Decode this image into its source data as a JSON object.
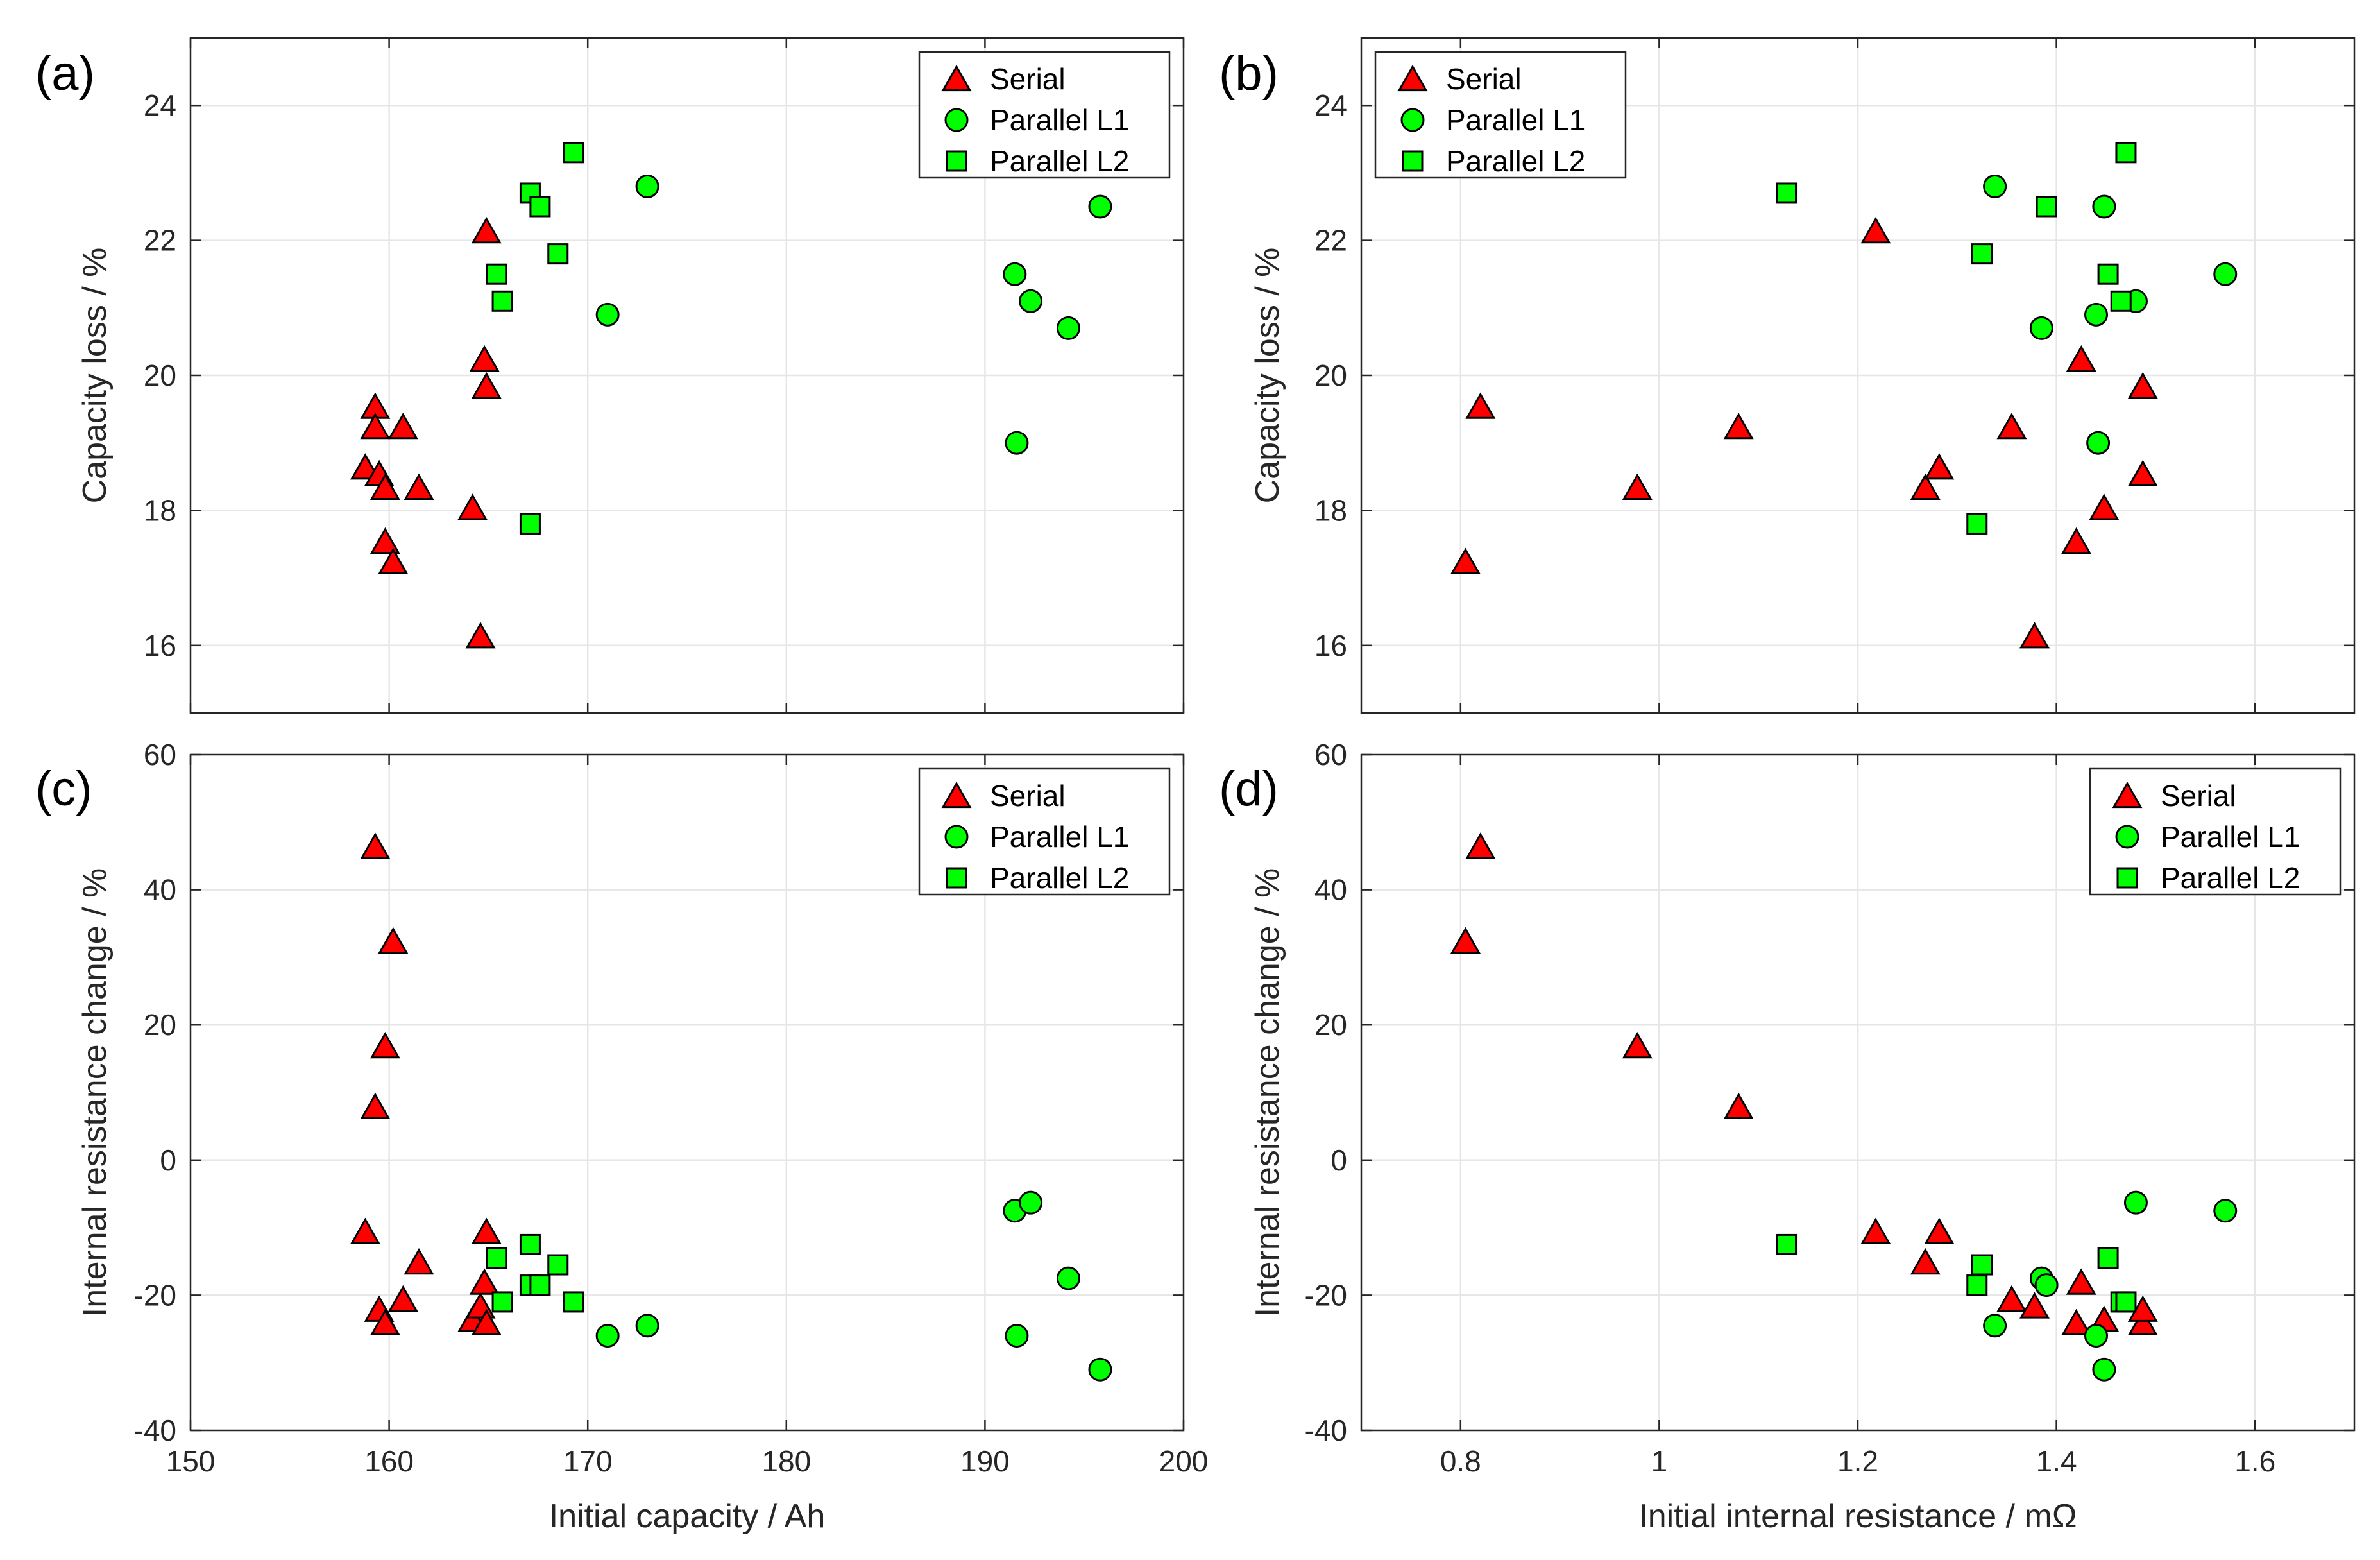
{
  "figure": {
    "marker_colors": {
      "Serial": "#ff0000",
      "Parallel L1": "#00ff00",
      "Parallel L2": "#00ff00"
    },
    "marker_shapes": {
      "Serial": "triangle",
      "Parallel L1": "circle",
      "Parallel L2": "square"
    }
  },
  "chart_data": [
    {
      "type": "scatter",
      "panel_label": "(a)",
      "title": "",
      "xlabel": "Initial capacity / Ah",
      "ylabel": "Capacity loss / %",
      "xlim": [
        150,
        200
      ],
      "ylim": [
        15,
        25
      ],
      "xticks": [
        150,
        160,
        170,
        180,
        190,
        200
      ],
      "yticks": [
        16,
        18,
        20,
        22,
        24
      ],
      "xtick_labels": [],
      "ytick_labels": [
        "16",
        "18",
        "20",
        "22",
        "24"
      ],
      "grid": true,
      "legend": {
        "position": "top-right",
        "entries": [
          "Serial",
          "Parallel L1",
          "Parallel L2"
        ]
      },
      "series": [
        {
          "name": "Serial",
          "points": [
            [
              158.8,
              18.6
            ],
            [
              159.3,
              19.5
            ],
            [
              159.3,
              19.2
            ],
            [
              159.5,
              18.5
            ],
            [
              159.8,
              18.3
            ],
            [
              159.8,
              17.5
            ],
            [
              160.2,
              17.2
            ],
            [
              160.7,
              19.2
            ],
            [
              161.5,
              18.3
            ],
            [
              164.2,
              18.0
            ],
            [
              164.6,
              16.1
            ],
            [
              164.8,
              20.2
            ],
            [
              164.9,
              19.8
            ],
            [
              164.9,
              22.1
            ]
          ]
        },
        {
          "name": "Parallel L1",
          "points": [
            [
              171.0,
              20.9
            ],
            [
              173.0,
              22.8
            ],
            [
              191.5,
              21.5
            ],
            [
              191.6,
              19.0
            ],
            [
              192.3,
              21.1
            ],
            [
              194.2,
              20.7
            ],
            [
              195.8,
              22.5
            ]
          ]
        },
        {
          "name": "Parallel L2",
          "points": [
            [
              165.4,
              21.5
            ],
            [
              165.7,
              21.1
            ],
            [
              167.1,
              22.7
            ],
            [
              167.1,
              17.8
            ],
            [
              167.6,
              22.5
            ],
            [
              168.5,
              21.8
            ],
            [
              169.3,
              23.3
            ]
          ]
        }
      ]
    },
    {
      "type": "scatter",
      "panel_label": "(b)",
      "title": "",
      "xlabel": "",
      "ylabel": "Capacity loss / %",
      "xlim": [
        0.7,
        1.7
      ],
      "ylim": [
        15,
        25
      ],
      "xticks": [
        0.8,
        1.0,
        1.2,
        1.4,
        1.6
      ],
      "yticks": [
        16,
        18,
        20,
        22,
        24
      ],
      "xtick_labels": [],
      "ytick_labels": [
        "16",
        "18",
        "20",
        "22",
        "24"
      ],
      "grid": true,
      "legend": {
        "position": "top-left",
        "entries": [
          "Serial",
          "Parallel L1",
          "Parallel L2"
        ]
      },
      "series": [
        {
          "name": "Serial",
          "points": [
            [
              0.805,
              17.2
            ],
            [
              0.82,
              19.5
            ],
            [
              0.978,
              18.3
            ],
            [
              1.08,
              19.2
            ],
            [
              1.218,
              22.1
            ],
            [
              1.268,
              18.3
            ],
            [
              1.282,
              18.6
            ],
            [
              1.355,
              19.2
            ],
            [
              1.378,
              16.1
            ],
            [
              1.42,
              17.5
            ],
            [
              1.425,
              20.2
            ],
            [
              1.448,
              18.0
            ],
            [
              1.487,
              18.5
            ],
            [
              1.487,
              19.8
            ]
          ]
        },
        {
          "name": "Parallel L1",
          "points": [
            [
              1.338,
              22.8
            ],
            [
              1.385,
              20.7
            ],
            [
              1.44,
              20.9
            ],
            [
              1.442,
              19.0
            ],
            [
              1.448,
              22.5
            ],
            [
              1.48,
              21.1
            ],
            [
              1.57,
              21.5
            ]
          ]
        },
        {
          "name": "Parallel L2",
          "points": [
            [
              1.128,
              22.7
            ],
            [
              1.32,
              17.8
            ],
            [
              1.325,
              21.8
            ],
            [
              1.39,
              22.5
            ],
            [
              1.452,
              21.5
            ],
            [
              1.465,
              21.1
            ],
            [
              1.47,
              23.3
            ]
          ]
        }
      ]
    },
    {
      "type": "scatter",
      "panel_label": "(c)",
      "title": "",
      "xlabel": "Initial capacity / Ah",
      "ylabel": "Internal resistance change / %",
      "xlim": [
        150,
        200
      ],
      "ylim": [
        -40,
        60
      ],
      "xticks": [
        150,
        160,
        170,
        180,
        190,
        200
      ],
      "yticks": [
        -40,
        -20,
        0,
        20,
        40,
        60
      ],
      "xtick_labels": [
        "150",
        "160",
        "170",
        "180",
        "190",
        "200"
      ],
      "ytick_labels": [
        "-40",
        "-20",
        "0",
        "20",
        "40",
        "60"
      ],
      "grid": true,
      "legend": {
        "position": "top-right",
        "entries": [
          "Serial",
          "Parallel L1",
          "Parallel L2"
        ]
      },
      "series": [
        {
          "name": "Serial",
          "points": [
            [
              158.8,
              -11
            ],
            [
              159.3,
              46
            ],
            [
              159.3,
              7.5
            ],
            [
              159.5,
              -22.5
            ],
            [
              159.8,
              16.5
            ],
            [
              159.8,
              -24.5
            ],
            [
              160.2,
              32
            ],
            [
              160.7,
              -21
            ],
            [
              161.5,
              -15.5
            ],
            [
              164.2,
              -24
            ],
            [
              164.6,
              -22
            ],
            [
              164.8,
              -18.5
            ],
            [
              164.9,
              -11
            ],
            [
              164.9,
              -24.5
            ]
          ]
        },
        {
          "name": "Parallel L1",
          "points": [
            [
              171.0,
              -26
            ],
            [
              173.0,
              -24.5
            ],
            [
              191.5,
              -7.5
            ],
            [
              191.6,
              -26
            ],
            [
              192.3,
              -6.3
            ],
            [
              194.2,
              -17.5
            ],
            [
              195.8,
              -31
            ]
          ]
        },
        {
          "name": "Parallel L2",
          "points": [
            [
              165.4,
              -14.5
            ],
            [
              165.7,
              -21
            ],
            [
              167.1,
              -12.5
            ],
            [
              167.1,
              -18.5
            ],
            [
              167.6,
              -18.5
            ],
            [
              168.5,
              -15.5
            ],
            [
              169.3,
              -21
            ]
          ]
        }
      ]
    },
    {
      "type": "scatter",
      "panel_label": "(d)",
      "title": "",
      "xlabel": "Initial internal resistance / mΩ",
      "ylabel": "Internal resistance change / %",
      "xlim": [
        0.7,
        1.7
      ],
      "ylim": [
        -40,
        60
      ],
      "xticks": [
        0.8,
        1.0,
        1.2,
        1.4,
        1.6
      ],
      "yticks": [
        -40,
        -20,
        0,
        20,
        40,
        60
      ],
      "xtick_labels": [
        "0.8",
        "1",
        "1.2",
        "1.4",
        "1.6"
      ],
      "ytick_labels": [
        "-40",
        "-20",
        "0",
        "20",
        "40",
        "60"
      ],
      "grid": true,
      "legend": {
        "position": "top-right",
        "entries": [
          "Serial",
          "Parallel L1",
          "Parallel L2"
        ]
      },
      "series": [
        {
          "name": "Serial",
          "points": [
            [
              0.805,
              32
            ],
            [
              0.82,
              46
            ],
            [
              0.978,
              16.5
            ],
            [
              1.08,
              7.5
            ],
            [
              1.218,
              -11
            ],
            [
              1.268,
              -15.5
            ],
            [
              1.282,
              -11
            ],
            [
              1.355,
              -21
            ],
            [
              1.378,
              -22
            ],
            [
              1.42,
              -24.5
            ],
            [
              1.425,
              -18.5
            ],
            [
              1.448,
              -24
            ],
            [
              1.487,
              -24.5
            ],
            [
              1.487,
              -22.5
            ]
          ]
        },
        {
          "name": "Parallel L1",
          "points": [
            [
              1.338,
              -24.5
            ],
            [
              1.385,
              -17.5
            ],
            [
              1.39,
              -18.5
            ],
            [
              1.44,
              -26
            ],
            [
              1.448,
              -31
            ],
            [
              1.48,
              -6.3
            ],
            [
              1.57,
              -7.5
            ]
          ]
        },
        {
          "name": "Parallel L2",
          "points": [
            [
              1.128,
              -12.5
            ],
            [
              1.32,
              -18.5
            ],
            [
              1.325,
              -15.5
            ],
            [
              1.452,
              -14.5
            ],
            [
              1.465,
              -21
            ],
            [
              1.47,
              -21
            ]
          ]
        }
      ]
    }
  ]
}
